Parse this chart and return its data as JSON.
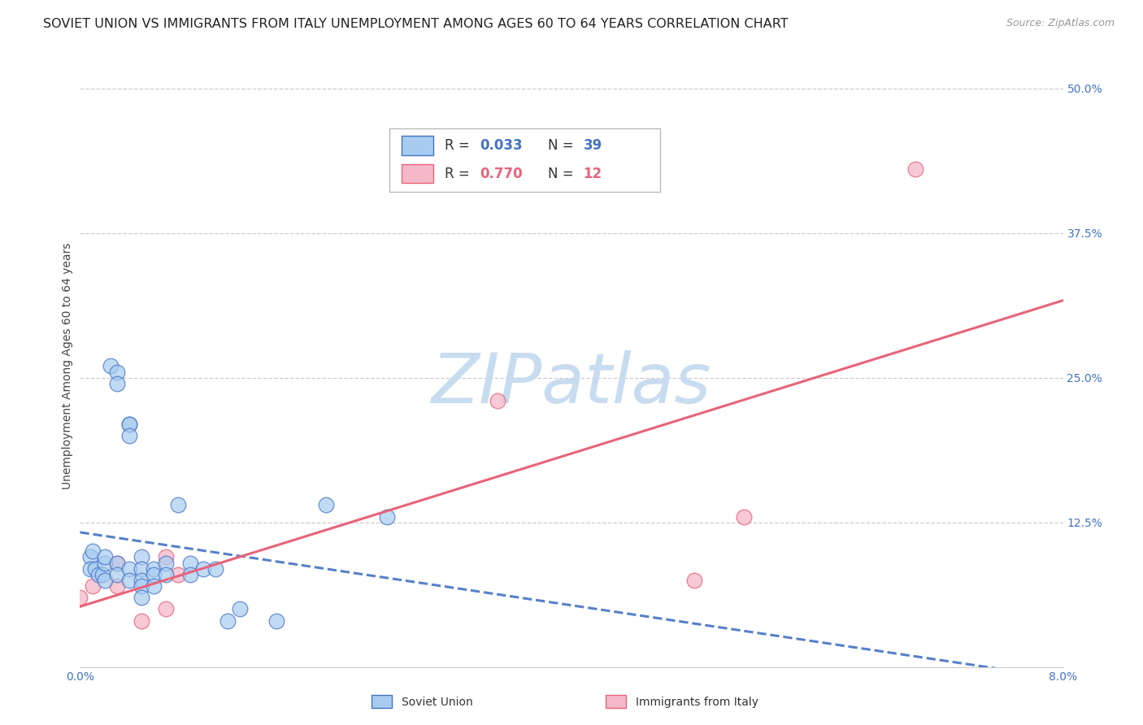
{
  "title": "SOVIET UNION VS IMMIGRANTS FROM ITALY UNEMPLOYMENT AMONG AGES 60 TO 64 YEARS CORRELATION CHART",
  "source": "Source: ZipAtlas.com",
  "ylabel": "Unemployment Among Ages 60 to 64 years",
  "xlim": [
    0.0,
    0.08
  ],
  "ylim": [
    0.0,
    0.52
  ],
  "ytick_labels_right": [
    "50.0%",
    "37.5%",
    "25.0%",
    "12.5%"
  ],
  "ytick_vals_right": [
    0.5,
    0.375,
    0.25,
    0.125
  ],
  "soviet_color": "#A8CCF0",
  "italy_color": "#F5B8C8",
  "soviet_line_color": "#4472C4",
  "italy_line_color": "#E8637A",
  "background_color": "#FFFFFF",
  "watermark_text": "ZIPatlas",
  "watermark_color": "#C8DCF0",
  "soviet_x": [
    0.0008,
    0.0008,
    0.001,
    0.0012,
    0.0015,
    0.0018,
    0.002,
    0.002,
    0.002,
    0.0025,
    0.003,
    0.003,
    0.003,
    0.003,
    0.004,
    0.004,
    0.004,
    0.004,
    0.004,
    0.005,
    0.005,
    0.005,
    0.005,
    0.005,
    0.006,
    0.006,
    0.006,
    0.007,
    0.007,
    0.008,
    0.009,
    0.009,
    0.01,
    0.011,
    0.012,
    0.013,
    0.016,
    0.02,
    0.025
  ],
  "soviet_y": [
    0.095,
    0.085,
    0.1,
    0.085,
    0.08,
    0.08,
    0.075,
    0.09,
    0.095,
    0.26,
    0.255,
    0.245,
    0.09,
    0.08,
    0.21,
    0.21,
    0.2,
    0.085,
    0.075,
    0.095,
    0.085,
    0.075,
    0.07,
    0.06,
    0.085,
    0.08,
    0.07,
    0.09,
    0.08,
    0.14,
    0.09,
    0.08,
    0.085,
    0.085,
    0.04,
    0.05,
    0.04,
    0.14,
    0.13
  ],
  "italy_x": [
    0.0,
    0.001,
    0.003,
    0.003,
    0.005,
    0.007,
    0.007,
    0.008,
    0.034,
    0.05,
    0.054,
    0.068
  ],
  "italy_y": [
    0.06,
    0.07,
    0.07,
    0.09,
    0.04,
    0.05,
    0.095,
    0.08,
    0.23,
    0.075,
    0.13,
    0.43
  ],
  "title_fontsize": 11.5,
  "axis_label_fontsize": 10,
  "tick_fontsize": 10,
  "legend_fontsize": 12,
  "source_fontsize": 9
}
